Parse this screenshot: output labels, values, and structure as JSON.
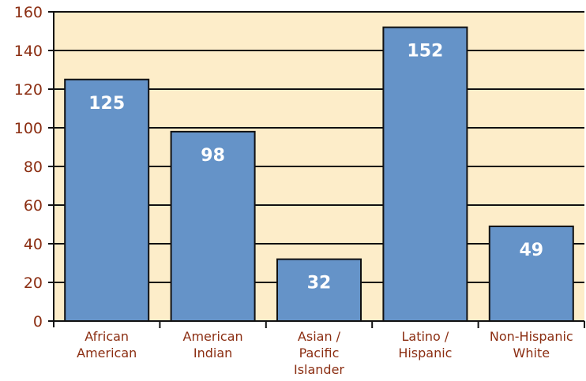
{
  "chart_data": {
    "type": "bar",
    "categories": [
      [
        "African",
        "American"
      ],
      [
        "American",
        "Indian"
      ],
      [
        "Asian /",
        "Pacific",
        "Islander"
      ],
      [
        "Latino /",
        "Hispanic"
      ],
      [
        "Non-Hispanic",
        "White"
      ]
    ],
    "values": [
      125,
      98,
      32,
      152,
      49
    ],
    "value_labels": [
      "125",
      "98",
      "32",
      "152",
      "49"
    ],
    "ylim": [
      0,
      160
    ],
    "yticks": [
      "0",
      "20",
      "40",
      "60",
      "80",
      "100",
      "120",
      "140",
      "160"
    ],
    "grid": true,
    "colors": {
      "bar": "#6593c8",
      "bar_edge": "#111111",
      "plot_background": "#fdedc9",
      "tick_text": "#8b2e12",
      "axis": "#111111"
    }
  }
}
